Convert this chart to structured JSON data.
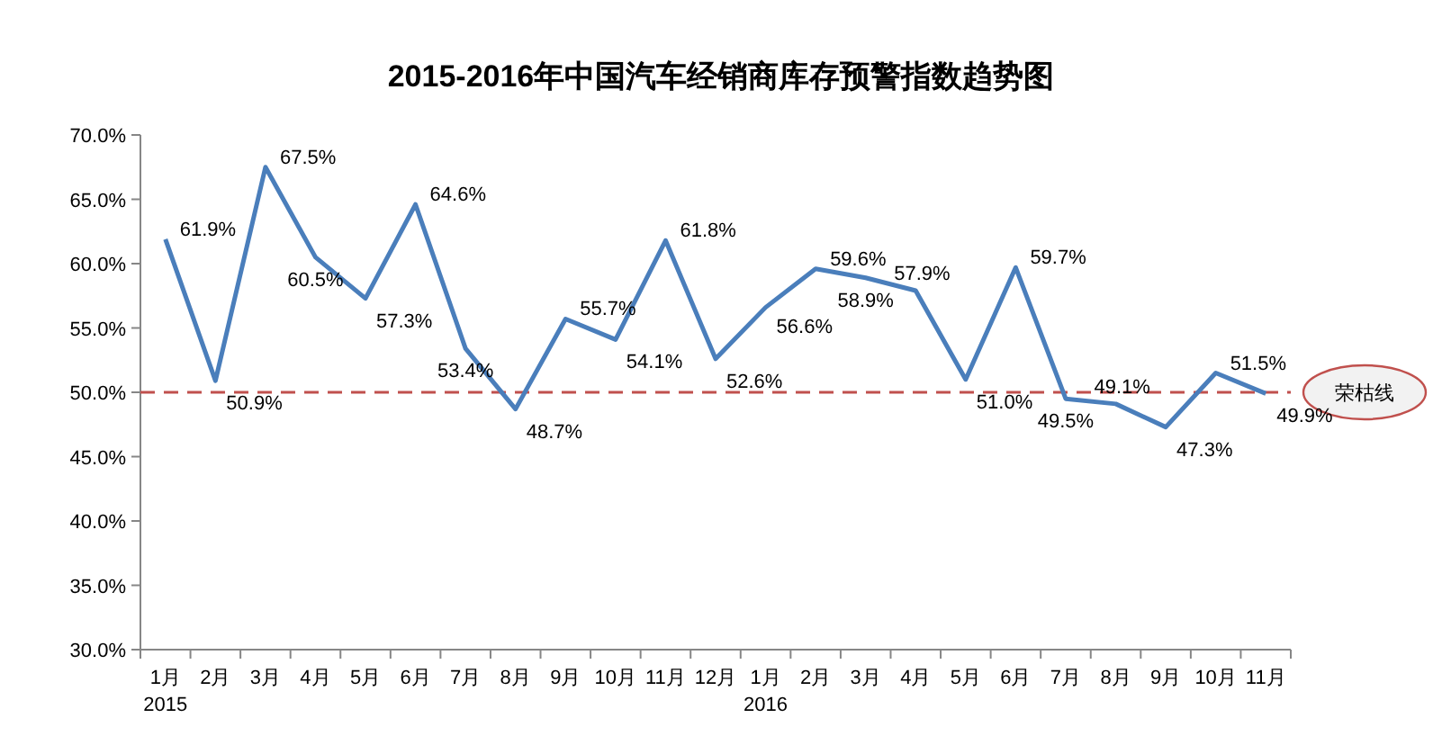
{
  "chart_data": {
    "type": "line",
    "title": "2015-2016年中国汽车经销商库存预警指数趋势图",
    "categories": [
      "1月\n2015",
      "2月",
      "3月",
      "4月",
      "5月",
      "6月",
      "7月",
      "8月",
      "9月",
      "10月",
      "11月",
      "12月",
      "1月\n2016",
      "2月",
      "3月",
      "4月",
      "5月",
      "6月",
      "7月",
      "8月",
      "9月",
      "10月",
      "11月"
    ],
    "series": [
      {
        "color": "#4a7ebb",
        "values": [
          61.9,
          50.9,
          67.5,
          60.5,
          57.3,
          64.6,
          53.4,
          48.7,
          55.7,
          54.1,
          61.8,
          52.6,
          56.6,
          59.6,
          58.9,
          57.9,
          51.0,
          59.7,
          49.5,
          49.1,
          47.3,
          51.5,
          49.9
        ],
        "value_labels": [
          "61.9%",
          "50.9%",
          "67.5%",
          "60.5%",
          "57.3%",
          "64.6%",
          "53.4%",
          "48.7%",
          "55.7%",
          "54.1%",
          "61.8%",
          "52.6%",
          "56.6%",
          "59.6%",
          "58.9%",
          "57.9%",
          "51.0%",
          "59.7%",
          "49.5%",
          "49.1%",
          "47.3%",
          "51.5%",
          "49.9%"
        ]
      }
    ],
    "ylim": [
      30,
      70
    ],
    "yticks": [
      {
        "value": 30,
        "label": "30.0%"
      },
      {
        "value": 35,
        "label": "35.0%"
      },
      {
        "value": 40,
        "label": "40.0%"
      },
      {
        "value": 45,
        "label": "45.0%"
      },
      {
        "value": 50,
        "label": "50.0%"
      },
      {
        "value": 55,
        "label": "55.0%"
      },
      {
        "value": 60,
        "label": "60.0%"
      },
      {
        "value": 65,
        "label": "65.0%"
      },
      {
        "value": 70,
        "label": "70.0%"
      }
    ],
    "ref_lines": [
      {
        "axis": "y",
        "value": 50,
        "label": "荣枯线",
        "color": "#c0504d",
        "line_style": "dashed"
      }
    ],
    "grid": false,
    "marker": "none",
    "line_style": "solid"
  }
}
